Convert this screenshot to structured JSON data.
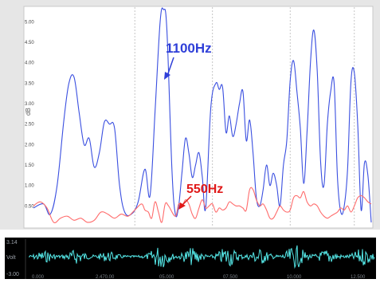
{
  "chart_data": [
    {
      "type": "line",
      "ylabel": "dB",
      "ylim": [
        0,
        5.3
      ],
      "xlim": [
        0,
        100
      ],
      "yticks": [
        "5.00",
        "4.50",
        "4.00",
        "3.50",
        "3.00",
        "2.50",
        "2.00",
        "1.50",
        "1.00",
        "0.50"
      ],
      "ytick_values": [
        5.0,
        4.5,
        4.0,
        3.5,
        3.0,
        2.5,
        2.0,
        1.5,
        1.0,
        0.5
      ],
      "grid": "vertical-dashed",
      "series": [
        {
          "name": "1100Hz",
          "color": "#3a4fe0",
          "points": [
            [
              0,
              0.45
            ],
            [
              3,
              0.55
            ],
            [
              5,
              0.3
            ],
            [
              7,
              1.0
            ],
            [
              9,
              2.6
            ],
            [
              10.5,
              3.5
            ],
            [
              12,
              3.65
            ],
            [
              13.5,
              2.8
            ],
            [
              15,
              2.0
            ],
            [
              16.5,
              2.15
            ],
            [
              18,
              1.45
            ],
            [
              19.5,
              1.8
            ],
            [
              21,
              2.55
            ],
            [
              22.5,
              2.5
            ],
            [
              24,
              2.4
            ],
            [
              25.5,
              1.0
            ],
            [
              27,
              0.35
            ],
            [
              29,
              0.3
            ],
            [
              31,
              0.6
            ],
            [
              33,
              1.4
            ],
            [
              34.5,
              0.75
            ],
            [
              36,
              2.8
            ],
            [
              37.5,
              5.0
            ],
            [
              38.5,
              5.3
            ],
            [
              39.5,
              4.8
            ],
            [
              41,
              1.4
            ],
            [
              42,
              0.3
            ],
            [
              43,
              0.5
            ],
            [
              44,
              1.35
            ],
            [
              45,
              2.15
            ],
            [
              46,
              1.8
            ],
            [
              47,
              1.2
            ],
            [
              48,
              1.5
            ],
            [
              49,
              1.8
            ],
            [
              50,
              1.2
            ],
            [
              51,
              0.45
            ],
            [
              52.5,
              2.9
            ],
            [
              54,
              3.5
            ],
            [
              55,
              3.35
            ],
            [
              56,
              3.4
            ],
            [
              57,
              2.3
            ],
            [
              58,
              2.7
            ],
            [
              59,
              2.2
            ],
            [
              60,
              2.5
            ],
            [
              61,
              3.0
            ],
            [
              62,
              3.3
            ],
            [
              63,
              2.1
            ],
            [
              64,
              2.6
            ],
            [
              65,
              1.8
            ],
            [
              66,
              0.7
            ],
            [
              67,
              0.5
            ],
            [
              68,
              0.9
            ],
            [
              69,
              1.5
            ],
            [
              70,
              1.0
            ],
            [
              71,
              1.3
            ],
            [
              72,
              1.0
            ],
            [
              73,
              0.5
            ],
            [
              74,
              1.5
            ],
            [
              75,
              2.1
            ],
            [
              76,
              3.55
            ],
            [
              77,
              4.05
            ],
            [
              78,
              3.3
            ],
            [
              79,
              2.4
            ],
            [
              80,
              1.05
            ],
            [
              81,
              2.3
            ],
            [
              82,
              4.0
            ],
            [
              83,
              4.8
            ],
            [
              84,
              3.8
            ],
            [
              85,
              1.6
            ],
            [
              86,
              1.0
            ],
            [
              87,
              2.5
            ],
            [
              88,
              3.3
            ],
            [
              89,
              3.5
            ],
            [
              90,
              1.2
            ],
            [
              91,
              0.35
            ],
            [
              92,
              0.5
            ],
            [
              93,
              1.4
            ],
            [
              94,
              3.55
            ],
            [
              95,
              3.75
            ],
            [
              96,
              2.5
            ],
            [
              97,
              0.4
            ],
            [
              98,
              1.55
            ],
            [
              99,
              1.25
            ],
            [
              100,
              0.1
            ]
          ]
        },
        {
          "name": "550Hz",
          "color": "#ff6b6b",
          "points": [
            [
              0,
              0.5
            ],
            [
              2,
              0.6
            ],
            [
              4,
              0.45
            ],
            [
              6,
              0.1
            ],
            [
              8,
              0.2
            ],
            [
              10,
              0.25
            ],
            [
              12,
              0.15
            ],
            [
              14,
              0.2
            ],
            [
              16,
              0.1
            ],
            [
              18,
              0.15
            ],
            [
              20,
              0.35
            ],
            [
              22,
              0.3
            ],
            [
              24,
              0.2
            ],
            [
              26,
              0.3
            ],
            [
              28,
              0.25
            ],
            [
              30,
              0.4
            ],
            [
              32,
              0.55
            ],
            [
              33,
              0.4
            ],
            [
              34,
              0.35
            ],
            [
              35,
              0.2
            ],
            [
              36,
              0.6
            ],
            [
              37,
              0.35
            ],
            [
              38,
              0.1
            ],
            [
              39,
              0.55
            ],
            [
              40,
              0.5
            ],
            [
              42,
              0.25
            ],
            [
              43,
              0.55
            ],
            [
              44,
              0.5
            ],
            [
              45,
              0.65
            ],
            [
              46,
              0.55
            ],
            [
              47,
              0.3
            ],
            [
              48,
              0.2
            ],
            [
              49,
              0.45
            ],
            [
              50,
              0.65
            ],
            [
              51,
              0.45
            ],
            [
              52,
              0.5
            ],
            [
              53,
              0.55
            ],
            [
              54,
              0.35
            ],
            [
              55,
              0.45
            ],
            [
              56,
              0.4
            ],
            [
              57,
              0.45
            ],
            [
              58,
              0.6
            ],
            [
              59,
              0.55
            ],
            [
              60,
              0.5
            ],
            [
              61,
              0.5
            ],
            [
              62,
              0.45
            ],
            [
              63,
              0.4
            ],
            [
              64,
              0.9
            ],
            [
              65,
              0.9
            ],
            [
              66,
              0.65
            ],
            [
              67,
              0.5
            ],
            [
              68,
              0.55
            ],
            [
              69,
              0.4
            ],
            [
              70,
              0.2
            ],
            [
              71,
              0.2
            ],
            [
              72,
              0.35
            ],
            [
              73,
              0.5
            ],
            [
              74,
              0.4
            ],
            [
              75,
              0.35
            ],
            [
              76,
              0.4
            ],
            [
              77,
              0.7
            ],
            [
              78,
              0.75
            ],
            [
              79,
              0.7
            ],
            [
              80,
              0.85
            ],
            [
              81,
              0.6
            ],
            [
              82,
              0.5
            ],
            [
              83,
              0.55
            ],
            [
              84,
              0.5
            ],
            [
              85,
              0.35
            ],
            [
              86,
              0.25
            ],
            [
              87,
              0.2
            ],
            [
              88,
              0.25
            ],
            [
              89,
              0.3
            ],
            [
              90,
              0.35
            ],
            [
              91,
              0.45
            ],
            [
              92,
              0.4
            ],
            [
              93,
              0.5
            ],
            [
              94,
              0.35
            ],
            [
              95,
              0.5
            ],
            [
              96,
              0.7
            ],
            [
              97,
              0.75
            ],
            [
              98,
              0.7
            ],
            [
              99,
              0.6
            ],
            [
              100,
              0.55
            ]
          ]
        }
      ]
    },
    {
      "type": "line",
      "ylabel": "Volt",
      "ytick_top": "3.14",
      "ytick_bottom": "-3.00",
      "xticks": [
        "0.000",
        "2.470.00",
        "05.000",
        "07.500",
        "10.000",
        "12.500"
      ],
      "color": "#55e8e8"
    }
  ],
  "annotations": {
    "label_1100": "1100Hz",
    "label_550": "550Hz"
  }
}
